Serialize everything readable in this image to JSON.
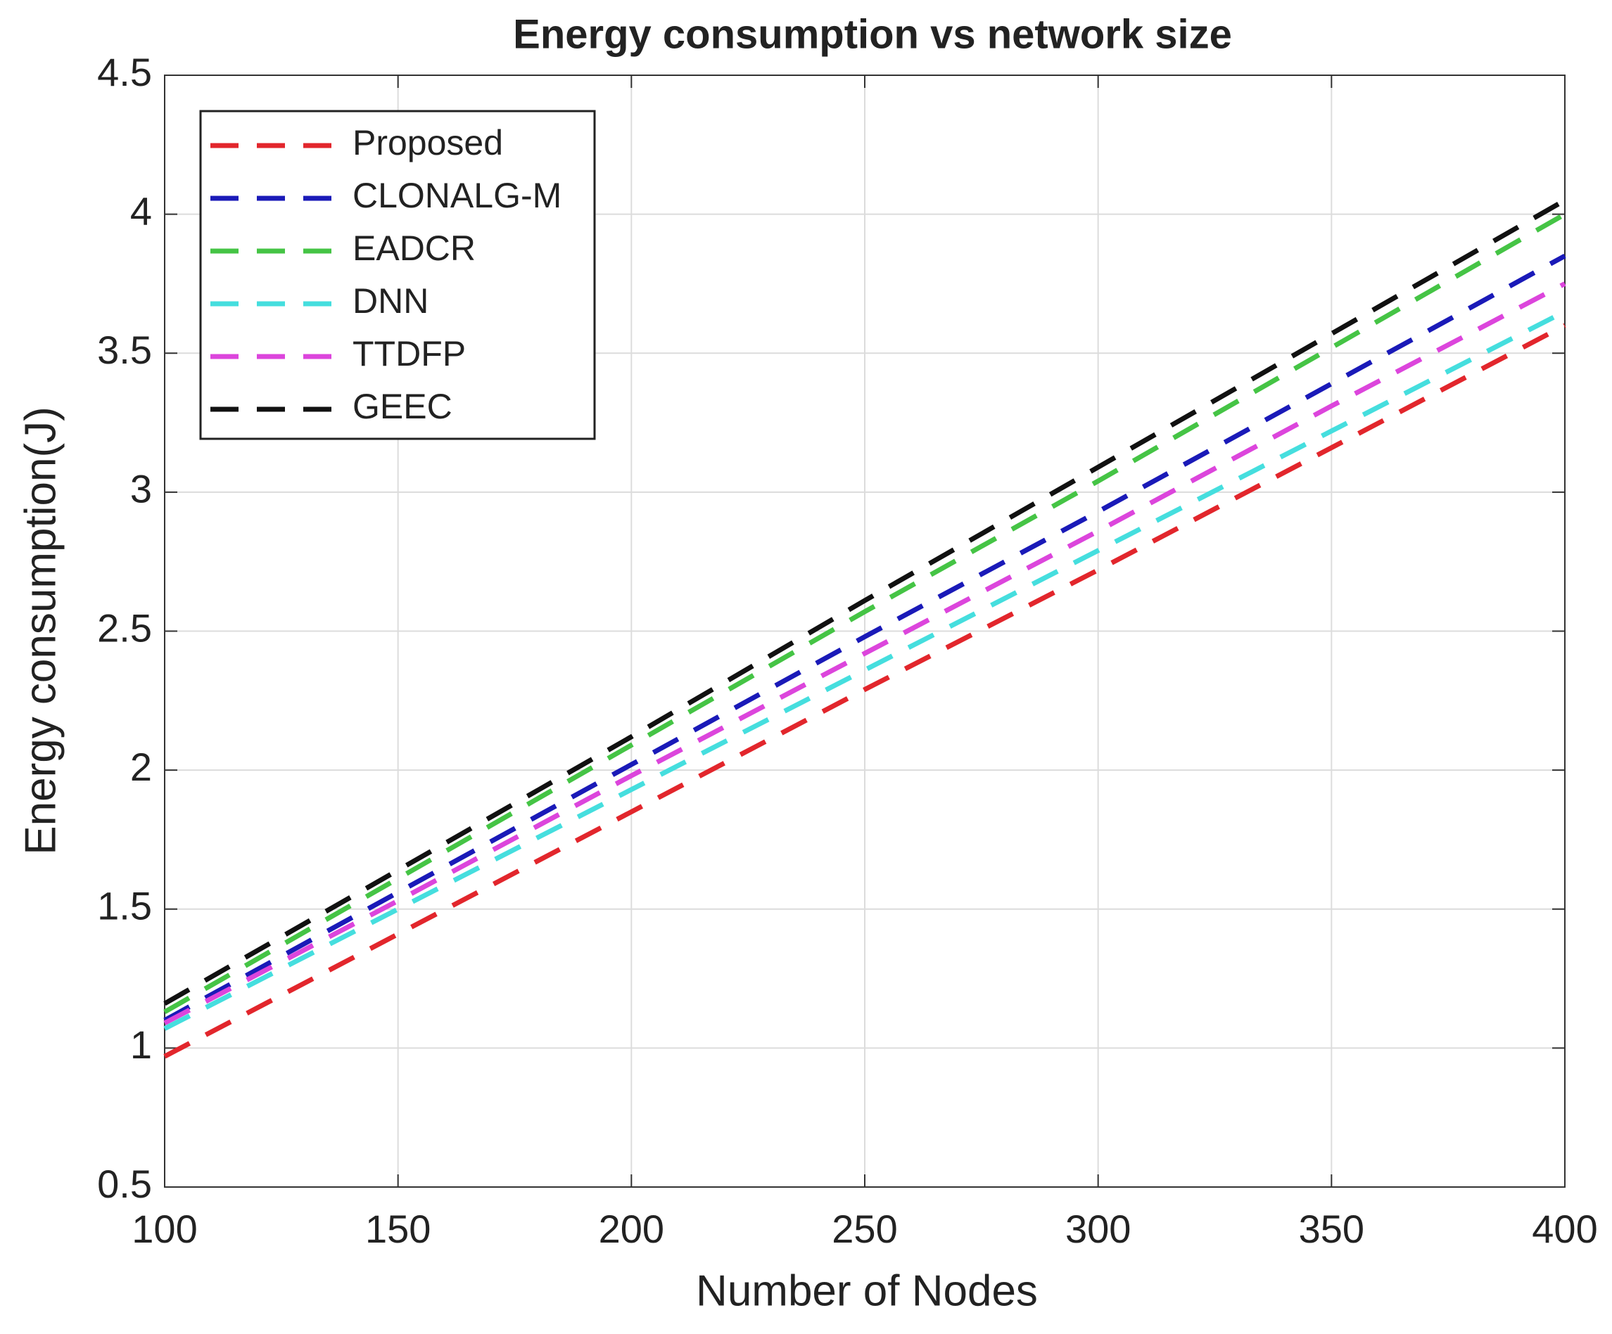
{
  "chart_data": {
    "type": "line",
    "title": "Energy consumption vs network size",
    "xlabel": "Number of Nodes",
    "ylabel": "Energy consumption(J)",
    "x": [
      100,
      150,
      200,
      250,
      300,
      350,
      400
    ],
    "series": [
      {
        "name": "Proposed",
        "color": "#e2262c",
        "values": [
          0.97,
          1.41,
          1.85,
          2.29,
          2.72,
          3.16,
          3.6
        ]
      },
      {
        "name": "CLONALG-M",
        "color": "#1a1ab8",
        "values": [
          1.1,
          1.56,
          2.02,
          2.48,
          2.93,
          3.39,
          3.85
        ]
      },
      {
        "name": "EADCR",
        "color": "#45c445",
        "values": [
          1.13,
          1.61,
          2.09,
          2.57,
          3.04,
          3.52,
          4.0
        ]
      },
      {
        "name": "DNN",
        "color": "#45dede",
        "values": [
          1.07,
          1.5,
          1.93,
          2.36,
          2.79,
          3.22,
          3.65
        ]
      },
      {
        "name": "TTDFP",
        "color": "#dc45dc",
        "values": [
          1.09,
          1.53,
          1.98,
          2.42,
          2.86,
          3.31,
          3.75
        ]
      },
      {
        "name": "GEEC",
        "color": "#111111",
        "values": [
          1.16,
          1.64,
          2.12,
          2.61,
          3.09,
          3.57,
          4.05
        ]
      }
    ],
    "xlim": [
      100,
      400
    ],
    "xticks": [
      100,
      150,
      200,
      250,
      300,
      350,
      400
    ],
    "ylim": [
      0.5,
      4.5
    ],
    "yticks": [
      0.5,
      1,
      1.5,
      2,
      2.5,
      3,
      3.5,
      4,
      4.5
    ],
    "grid": true,
    "legend": "northwest"
  }
}
